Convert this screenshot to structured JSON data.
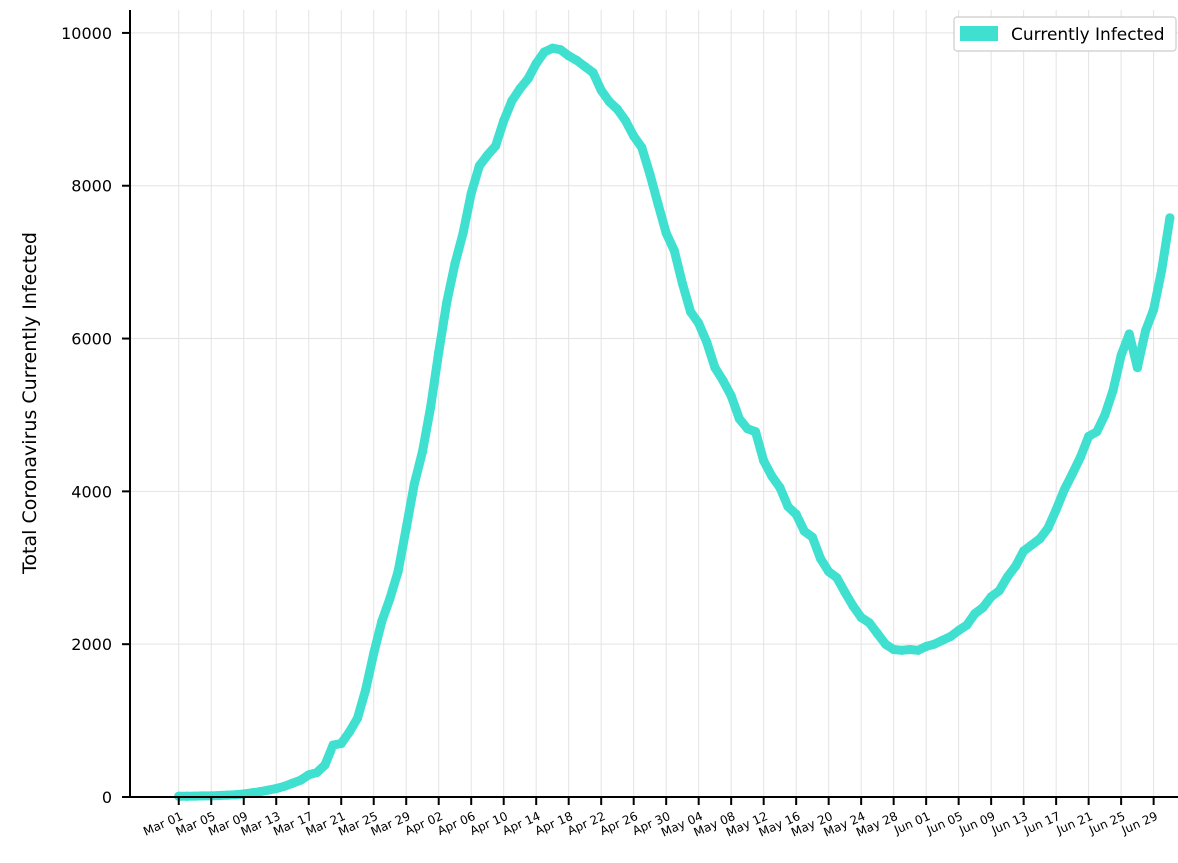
{
  "chart_data": {
    "type": "line",
    "title": "",
    "xlabel": "",
    "ylabel": "Total Coronavirus Currently Infected",
    "ylim": [
      0,
      10300
    ],
    "xlim": [
      "2020-02-24",
      "2020-07-02"
    ],
    "yticks": [
      0,
      2000,
      4000,
      6000,
      8000,
      10000
    ],
    "xtick_labels": [
      "Mar 01",
      "Mar 05",
      "Mar 09",
      "Mar 13",
      "Mar 17",
      "Mar 21",
      "Mar 25",
      "Mar 29",
      "Apr 02",
      "Apr 06",
      "Apr 10",
      "Apr 14",
      "Apr 18",
      "Apr 22",
      "Apr 26",
      "Apr 30",
      "May 04",
      "May 08",
      "May 12",
      "May 16",
      "May 20",
      "May 24",
      "May 28",
      "Jun 01",
      "Jun 05",
      "Jun 09",
      "Jun 13",
      "Jun 17",
      "Jun 21",
      "Jun 25",
      "Jun 29"
    ],
    "xtick_dates": [
      "2020-03-01",
      "2020-03-05",
      "2020-03-09",
      "2020-03-13",
      "2020-03-17",
      "2020-03-21",
      "2020-03-25",
      "2020-03-29",
      "2020-04-02",
      "2020-04-06",
      "2020-04-10",
      "2020-04-14",
      "2020-04-18",
      "2020-04-22",
      "2020-04-26",
      "2020-04-30",
      "2020-05-04",
      "2020-05-08",
      "2020-05-12",
      "2020-05-16",
      "2020-05-20",
      "2020-05-24",
      "2020-05-28",
      "2020-06-01",
      "2020-06-05",
      "2020-06-09",
      "2020-06-13",
      "2020-06-17",
      "2020-06-21",
      "2020-06-25",
      "2020-06-29"
    ],
    "grid": true,
    "legend_position": "top-right",
    "series": [
      {
        "name": "Currently Infected",
        "color": "#40e0d0",
        "x_start": "2020-03-01",
        "x_step_days": 1,
        "values": [
          10,
          10,
          12,
          14,
          15,
          20,
          25,
          30,
          40,
          55,
          70,
          90,
          110,
          140,
          180,
          220,
          290,
          320,
          420,
          680,
          700,
          850,
          1030,
          1400,
          1880,
          2300,
          2600,
          2950,
          3520,
          4100,
          4520,
          5100,
          5820,
          6480,
          6980,
          7380,
          7900,
          8260,
          8400,
          8520,
          8850,
          9110,
          9270,
          9400,
          9600,
          9750,
          9800,
          9780,
          9700,
          9640,
          9560,
          9480,
          9250,
          9100,
          9000,
          8850,
          8650,
          8500,
          8150,
          7760,
          7380,
          7150,
          6720,
          6350,
          6200,
          5950,
          5620,
          5450,
          5250,
          4950,
          4820,
          4780,
          4400,
          4200,
          4050,
          3800,
          3700,
          3480,
          3400,
          3120,
          2950,
          2870,
          2680,
          2500,
          2350,
          2280,
          2140,
          2000,
          1930,
          1920,
          1930,
          1920,
          1970,
          2000,
          2050,
          2100,
          2180,
          2250,
          2400,
          2480,
          2620,
          2700,
          2880,
          3020,
          3220,
          3300,
          3380,
          3520,
          3760,
          4020,
          4230,
          4450,
          4720,
          4780,
          5000,
          5320,
          5780,
          6060,
          5620,
          6100,
          6380,
          6900,
          7580
        ]
      }
    ]
  }
}
